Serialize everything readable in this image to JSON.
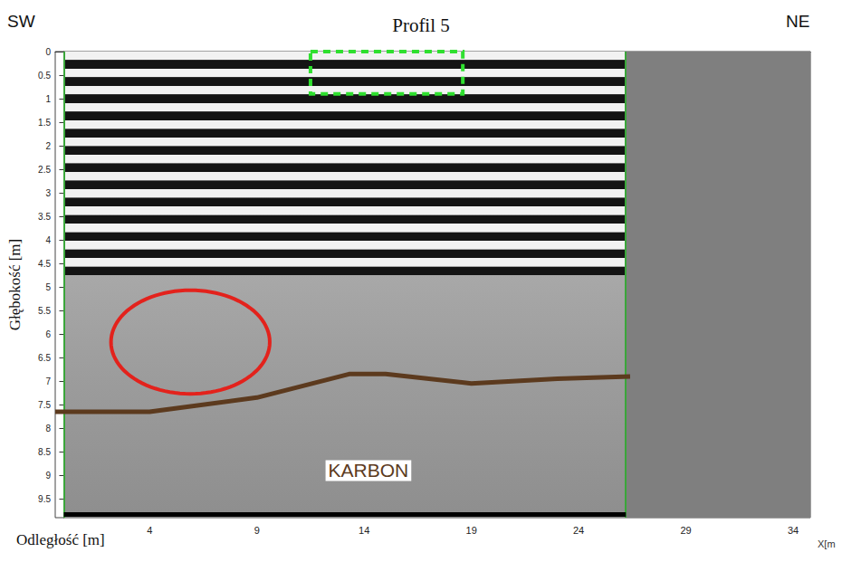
{
  "chart_data": {
    "type": "line",
    "title": "Profil 5",
    "x_label": "Odległość [m]",
    "y_label": "Głębokość [m]",
    "x_axis_end_label": "X[m",
    "left_label": "SW",
    "right_label": "NE",
    "xlim": [
      -0.4,
      34.8
    ],
    "xticks": [
      4,
      9,
      14,
      19,
      24,
      29,
      34
    ],
    "ylim": [
      0,
      9.9
    ],
    "yticks": [
      0,
      0.5,
      1,
      1.5,
      2,
      2.5,
      3,
      3.5,
      4,
      4.5,
      5,
      5.5,
      6,
      6.5,
      7,
      7.5,
      8,
      8.5,
      9,
      9.5
    ],
    "scan_range": [
      0,
      26.2
    ],
    "x": [
      -0.4,
      4,
      9,
      13.3,
      15,
      19,
      23,
      26.4
    ],
    "values": [
      7.65,
      7.65,
      7.35,
      6.85,
      6.85,
      7.05,
      6.95,
      6.9
    ],
    "color": "#5c3a1e",
    "annotations": [
      {
        "text": "KARBON",
        "x": 14.2,
        "y": 8.9,
        "color": "#5c3a1e"
      }
    ],
    "ellipse": {
      "center": [
        5.9,
        6.17
      ],
      "radii": [
        3.7,
        1.1
      ],
      "color": "#e3221c"
    },
    "box": {
      "x": [
        11.5,
        18.6
      ],
      "y": [
        0,
        0.9
      ],
      "color": "#2fe02f",
      "line_style": "dashed"
    }
  }
}
